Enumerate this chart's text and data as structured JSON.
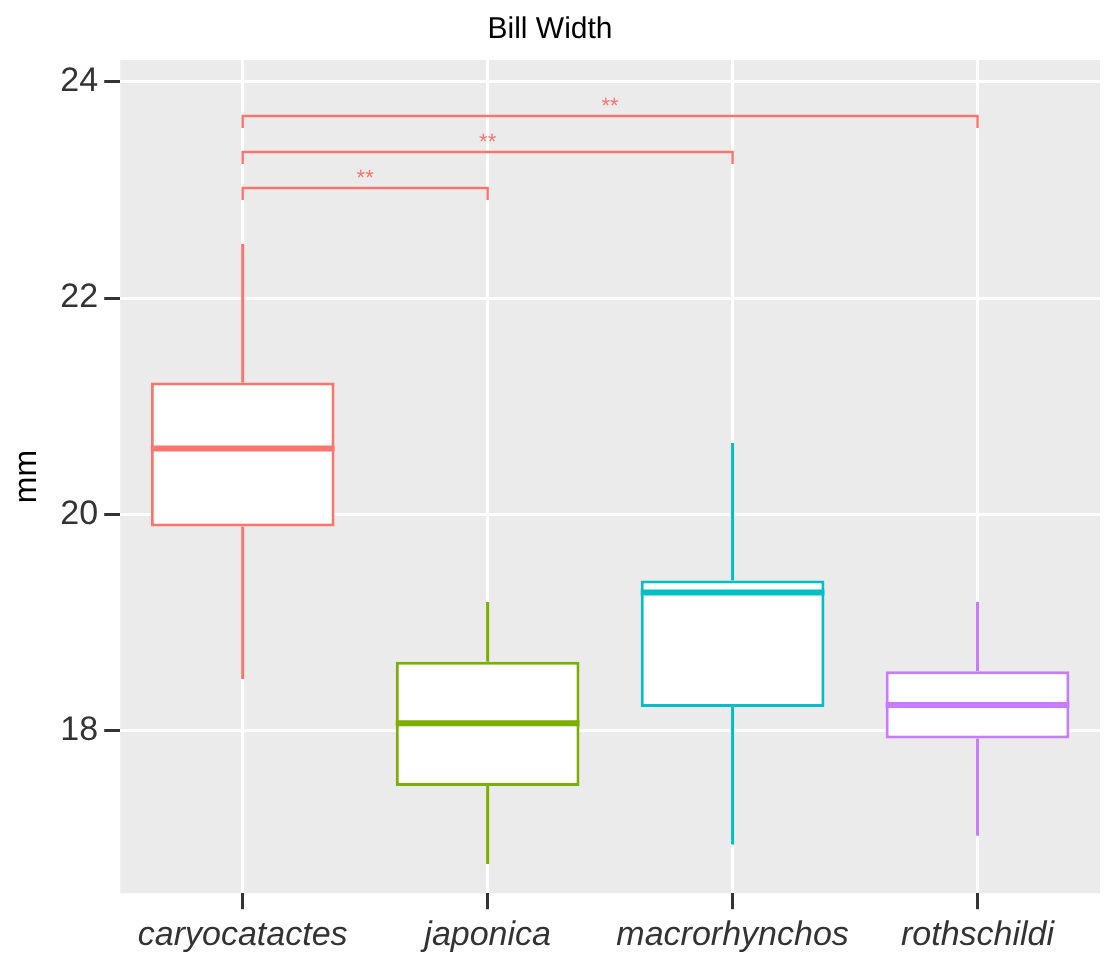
{
  "chart_data": {
    "type": "box",
    "title": "Bill Width",
    "ylabel": "mm",
    "categories": [
      "caryocatactes",
      "japonica",
      "macrorhynchos",
      "rothschildi"
    ],
    "colors": [
      "#f8766d",
      "#7cae00",
      "#00bfc4",
      "#c77cff"
    ],
    "boxes": [
      {
        "low": 18.48,
        "q1": 19.89,
        "median": 20.61,
        "q3": 21.22,
        "high": 22.5
      },
      {
        "low": 16.77,
        "q1": 17.49,
        "median": 18.07,
        "q3": 18.64,
        "high": 19.19
      },
      {
        "low": 16.95,
        "q1": 18.22,
        "median": 19.28,
        "q3": 19.39,
        "high": 20.66
      },
      {
        "low": 17.03,
        "q1": 17.93,
        "median": 18.24,
        "q3": 18.55,
        "high": 19.19
      }
    ],
    "ylim": [
      16.5,
      24.2
    ],
    "yticks": [
      18,
      20,
      22,
      24
    ],
    "grid": true,
    "legend": false,
    "annotations": [
      "**",
      "**",
      "**"
    ]
  }
}
